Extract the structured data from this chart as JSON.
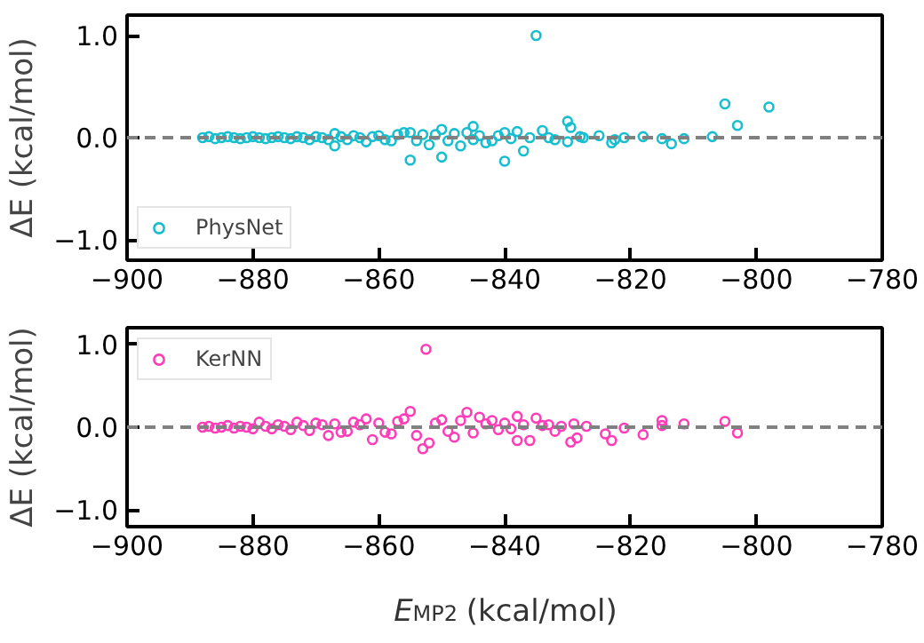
{
  "chart_data": [
    {
      "type": "scatter",
      "ylabel": "ΔE (kcal/mol)",
      "xlim": [
        -900,
        -780
      ],
      "ylim": [
        -1.2,
        1.2
      ],
      "xticks": [
        -900,
        -880,
        -860,
        -840,
        -820,
        -800,
        -780
      ],
      "yticks": [
        {
          "value": -1,
          "label": "−1.0"
        },
        {
          "value": 0,
          "label": "0.0"
        },
        {
          "value": 1,
          "label": "1.0"
        }
      ],
      "marker": "circle",
      "legend": "bottom left",
      "grid": false,
      "ref_lines": [
        {
          "axis": "y",
          "value": 0,
          "color": "#808080",
          "line_style": "dashed"
        }
      ],
      "series": [
        {
          "name": "PhysNet",
          "color": "#17becf",
          "x": [
            -888,
            -887,
            -886,
            -885,
            -884,
            -883,
            -882,
            -881,
            -880,
            -879,
            -878,
            -877,
            -876,
            -875,
            -874,
            -873,
            -872,
            -871,
            -870,
            -869,
            -868,
            -867,
            -867,
            -866,
            -865,
            -864,
            -863,
            -862,
            -861,
            -860,
            -859,
            -858,
            -857,
            -856,
            -855,
            -855,
            -854,
            -853,
            -852,
            -851,
            -850,
            -850,
            -849,
            -848,
            -847,
            -846,
            -845,
            -845,
            -844,
            -843,
            -842,
            -841,
            -840,
            -840,
            -839,
            -838,
            -837,
            -836,
            -835,
            -834,
            -833,
            -832,
            -830,
            -830,
            -829.5,
            -828,
            -827.5,
            -825,
            -823,
            -822.5,
            -821,
            -818,
            -815,
            -813.5,
            -811.5,
            -807,
            -805,
            -803,
            -798
          ],
          "values": [
            0,
            0.01,
            -0.01,
            0,
            0.01,
            0,
            -0.01,
            0,
            0.01,
            0,
            -0.01,
            0,
            0.01,
            0,
            -0.01,
            0.01,
            0,
            -0.02,
            0.01,
            0,
            -0.02,
            0.04,
            -0.08,
            0.01,
            -0.02,
            0.02,
            0,
            -0.04,
            0.01,
            0.02,
            -0.02,
            -0.03,
            0.03,
            0.05,
            0.05,
            -0.22,
            -0.03,
            0.03,
            -0.07,
            0.03,
            0.08,
            -0.19,
            -0.03,
            0.04,
            -0.08,
            0.05,
            0.11,
            -0.02,
            0.02,
            -0.05,
            -0.03,
            0.02,
            0.05,
            -0.23,
            -0.01,
            0.06,
            -0.13,
            0,
            1.0,
            0.07,
            0,
            -0.02,
            -0.04,
            0.16,
            0.1,
            0.01,
            0,
            0.02,
            -0.05,
            -0.02,
            0,
            0.01,
            -0.01,
            -0.06,
            -0.01,
            0.01,
            0.33,
            0.12,
            0.3
          ]
        }
      ]
    },
    {
      "type": "scatter",
      "xlabel": "E$_{MP2}$ (kcal/mol)",
      "ylabel": "ΔE (kcal/mol)",
      "xlim": [
        -900,
        -780
      ],
      "ylim": [
        -1.2,
        1.2
      ],
      "xticks": [
        -900,
        -880,
        -860,
        -840,
        -820,
        -800,
        -780
      ],
      "yticks": [
        {
          "value": -1,
          "label": "−1.0"
        },
        {
          "value": 0,
          "label": "0.0"
        },
        {
          "value": 1,
          "label": "1.0"
        }
      ],
      "marker": "circle",
      "legend": "top left",
      "grid": false,
      "ref_lines": [
        {
          "axis": "y",
          "value": 0,
          "color": "#808080",
          "line_style": "dashed"
        }
      ],
      "series": [
        {
          "name": "KerNN",
          "color": "#ff3db8",
          "x": [
            -888,
            -887,
            -886,
            -885,
            -884,
            -883,
            -882,
            -881,
            -880,
            -879,
            -878,
            -877,
            -876,
            -875,
            -874,
            -873,
            -872,
            -871,
            -870,
            -869,
            -868,
            -867,
            -866,
            -865,
            -864,
            -863,
            -862,
            -861,
            -860,
            -859,
            -858,
            -857,
            -856,
            -855,
            -854,
            -853,
            -852.5,
            -852,
            -851,
            -850,
            -849,
            -848,
            -847,
            -846,
            -845,
            -844,
            -843,
            -842,
            -841,
            -840,
            -839,
            -838,
            -838,
            -837,
            -836,
            -835,
            -834,
            -833,
            -832,
            -831,
            -829.5,
            -829,
            -828.5,
            -827,
            -824,
            -823,
            -821,
            -818,
            -815,
            -815,
            -811.5,
            -805,
            -803
          ],
          "values": [
            0,
            0.01,
            -0.01,
            0,
            0.02,
            -0.01,
            0.01,
            0,
            -0.02,
            0.06,
            0.01,
            -0.02,
            0.03,
            0.01,
            -0.03,
            0.06,
            0.02,
            -0.04,
            0.05,
            0.03,
            -0.1,
            0.04,
            -0.06,
            -0.05,
            0.06,
            0.03,
            0.1,
            -0.15,
            0.05,
            -0.06,
            -0.08,
            0.07,
            0.1,
            0.19,
            -0.1,
            -0.26,
            0.94,
            -0.19,
            0.05,
            0.09,
            -0.05,
            -0.12,
            0.08,
            0.18,
            -0.07,
            0.12,
            0.04,
            0.08,
            -0.03,
            0.05,
            -0.02,
            0.13,
            -0.16,
            0.03,
            -0.16,
            0.11,
            0.02,
            0.03,
            -0.05,
            0.01,
            -0.18,
            0.04,
            -0.13,
            0.01,
            -0.08,
            -0.16,
            -0.01,
            -0.09,
            0.08,
            0.02,
            0.04,
            0.07,
            -0.07
          ]
        }
      ]
    }
  ]
}
